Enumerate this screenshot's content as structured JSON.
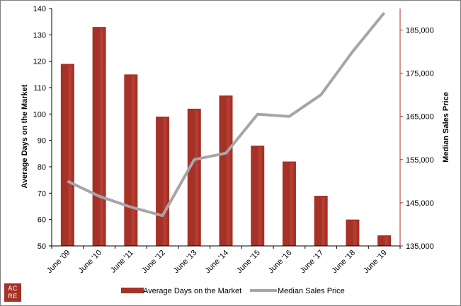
{
  "chart_data": {
    "type": "bar",
    "categories": [
      "June '09",
      "June '10",
      "June '11",
      "June '12",
      "June '13",
      "June '14",
      "June '15",
      "June '16",
      "June '17",
      "June '18",
      "June '19"
    ],
    "series": [
      {
        "name": "Average Days on the Market",
        "type": "bar",
        "axis": "left",
        "color": "#a63127",
        "values": [
          119,
          133,
          115,
          99,
          102,
          107,
          88,
          82,
          69,
          60,
          54
        ]
      },
      {
        "name": "Median Sales Price",
        "type": "line",
        "axis": "right",
        "color": "#a6a6a6",
        "values": [
          150000,
          146500,
          144000,
          142000,
          155000,
          156500,
          165500,
          165000,
          170000,
          180000,
          189000
        ]
      }
    ],
    "y_left": {
      "label": "Average Days on the Market",
      "ylim": [
        50,
        140
      ],
      "ticks": [
        "50",
        "60",
        "70",
        "80",
        "90",
        "100",
        "110",
        "120",
        "130",
        "140"
      ],
      "tick_values": [
        50,
        60,
        70,
        80,
        90,
        100,
        110,
        120,
        130,
        140
      ]
    },
    "y_right": {
      "label": "Median Sales Price",
      "ylim": [
        135000,
        190000
      ],
      "ticks": [
        "135,000",
        "145,000",
        "155,000",
        "165,000",
        "175,000",
        "185,000"
      ],
      "tick_values": [
        135000,
        145000,
        155000,
        165000,
        175000,
        185000
      ]
    },
    "legend": {
      "position": "bottom",
      "items": [
        "Average Days on the Market",
        "Median Sales Price"
      ]
    },
    "grid": false
  },
  "logo": {
    "line1": "AC",
    "line2": "RE"
  }
}
